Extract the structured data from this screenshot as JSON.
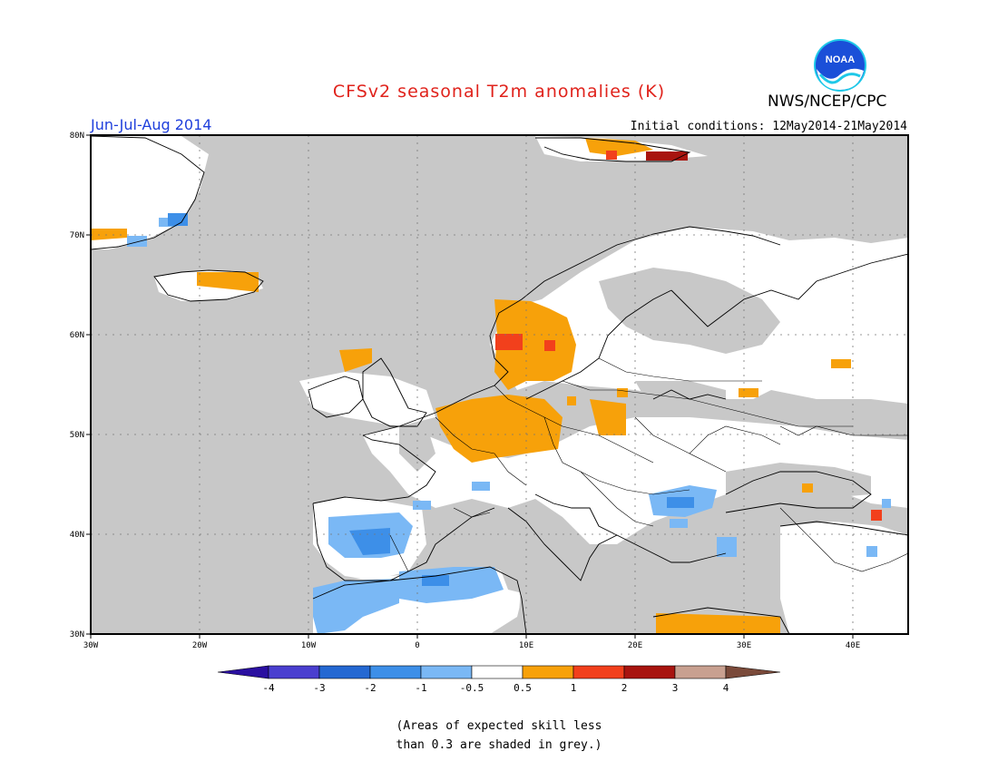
{
  "title": "CFSv2 seasonal T2m anomalies (K)",
  "period": "Jun-Jul-Aug 2014",
  "initial_conditions": "Initial conditions: 12May2014-21May2014",
  "agency": "NWS/NCEP/CPC",
  "logo_text": "NOAA",
  "colors": {
    "title": "#e0231c",
    "period": "#1f3fdc",
    "grey_low_skill": "#c8c8c8",
    "land_neutral": "#ffffff"
  },
  "map": {
    "lon_ticks": [
      "30W",
      "20W",
      "10W",
      "0",
      "10E",
      "20E",
      "30E",
      "40E"
    ],
    "lat_ticks": [
      "80N",
      "70N",
      "60N",
      "50N",
      "40N",
      "30N"
    ]
  },
  "colorbar": {
    "bins": [
      {
        "color": "#2a0fa0",
        "label": "-4"
      },
      {
        "color": "#4a3fcf",
        "label": "-3"
      },
      {
        "color": "#2468d2",
        "label": "-2"
      },
      {
        "color": "#3d8fe8",
        "label": "-1"
      },
      {
        "color": "#7ab8f5",
        "label": "-0.5"
      },
      {
        "color": "#ffffff",
        "label": "0.5"
      },
      {
        "color": "#f7a10a",
        "label": "1"
      },
      {
        "color": "#f2401c",
        "label": "2"
      },
      {
        "color": "#a8140f",
        "label": "3"
      },
      {
        "color": "#c8a090",
        "label": "4"
      },
      {
        "color": "#7a4a3a",
        "label": ""
      }
    ]
  },
  "caption": [
    "(Areas of expected skill less",
    "than 0.3 are shaded in grey.)"
  ]
}
